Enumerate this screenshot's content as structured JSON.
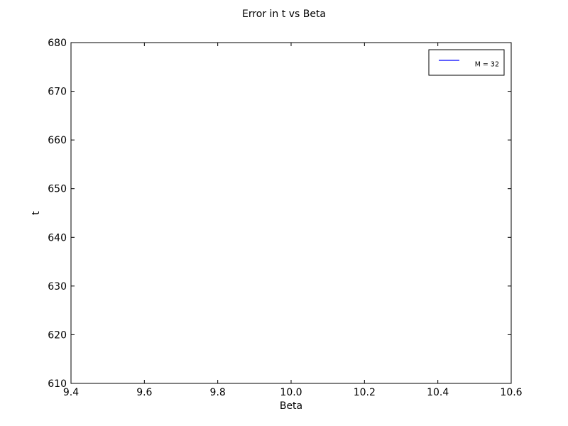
{
  "chart_data": {
    "type": "line",
    "title": "Error in t vs Beta",
    "xlabel": "Beta",
    "ylabel": "t",
    "xlim": [
      9.4,
      10.6
    ],
    "ylim": [
      610,
      680
    ],
    "x_ticks": [
      "9.4",
      "9.6",
      "9.8",
      "10.0",
      "10.2",
      "10.4",
      "10.6"
    ],
    "y_ticks": [
      "610",
      "620",
      "630",
      "640",
      "650",
      "660",
      "670",
      "680"
    ],
    "grid": false,
    "legend_position": "top-right",
    "series": [
      {
        "name": "M = 32",
        "color": "#0000ff",
        "x": [],
        "y": []
      }
    ]
  }
}
